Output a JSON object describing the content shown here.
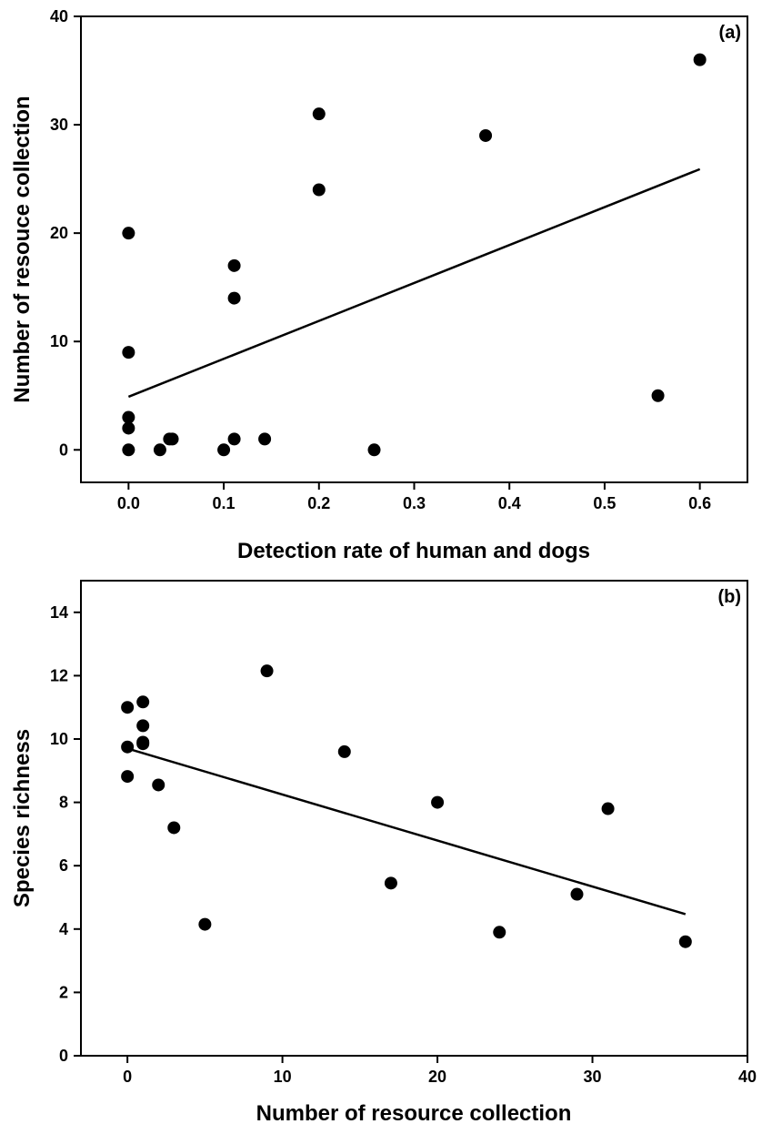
{
  "chart_data": [
    {
      "type": "scatter",
      "panel_label": "(a)",
      "xlabel": "Detection rate of human and dogs",
      "ylabel": "Number of resouce collection",
      "xlim": [
        -0.05,
        0.65
      ],
      "ylim": [
        -3,
        40
      ],
      "xticks": [
        0.0,
        0.1,
        0.2,
        0.3,
        0.4,
        0.5,
        0.6
      ],
      "xtick_labels": [
        "0.0",
        "0.1",
        "0.2",
        "0.3",
        "0.4",
        "0.5",
        "0.6"
      ],
      "yticks": [
        0,
        10,
        20,
        30,
        40
      ],
      "ytick_labels": [
        "0",
        "10",
        "20",
        "30",
        "40"
      ],
      "grid": false,
      "points": [
        {
          "x": 0.0,
          "y": 20
        },
        {
          "x": 0.0,
          "y": 9
        },
        {
          "x": 0.0,
          "y": 3
        },
        {
          "x": 0.0,
          "y": 2
        },
        {
          "x": 0.0,
          "y": 0
        },
        {
          "x": 0.033,
          "y": 0
        },
        {
          "x": 0.043,
          "y": 1
        },
        {
          "x": 0.046,
          "y": 1
        },
        {
          "x": 0.1,
          "y": 0
        },
        {
          "x": 0.111,
          "y": 1
        },
        {
          "x": 0.111,
          "y": 14
        },
        {
          "x": 0.111,
          "y": 17
        },
        {
          "x": 0.143,
          "y": 1
        },
        {
          "x": 0.2,
          "y": 31
        },
        {
          "x": 0.2,
          "y": 24
        },
        {
          "x": 0.258,
          "y": 0
        },
        {
          "x": 0.375,
          "y": 29
        },
        {
          "x": 0.556,
          "y": 5
        },
        {
          "x": 0.6,
          "y": 36
        }
      ],
      "fit_line": {
        "x": [
          0.0,
          0.6
        ],
        "y": [
          4.9,
          25.9
        ]
      }
    },
    {
      "type": "scatter",
      "panel_label": "(b)",
      "xlabel": "Number of resource collection",
      "ylabel": "Species richness",
      "xlim": [
        -3,
        40
      ],
      "ylim": [
        0,
        15
      ],
      "xticks": [
        0,
        10,
        20,
        30,
        40
      ],
      "xtick_labels": [
        "0",
        "10",
        "20",
        "30",
        "40"
      ],
      "yticks": [
        0,
        2,
        4,
        6,
        8,
        10,
        12,
        14
      ],
      "ytick_labels": [
        "0",
        "2",
        "4",
        "6",
        "8",
        "10",
        "12",
        "14"
      ],
      "grid": false,
      "points": [
        {
          "x": 0,
          "y": 11.0
        },
        {
          "x": 0,
          "y": 9.75
        },
        {
          "x": 0,
          "y": 8.82
        },
        {
          "x": 1,
          "y": 11.17
        },
        {
          "x": 1,
          "y": 10.42
        },
        {
          "x": 1,
          "y": 9.9
        },
        {
          "x": 1,
          "y": 9.85
        },
        {
          "x": 2,
          "y": 8.55
        },
        {
          "x": 3,
          "y": 7.2
        },
        {
          "x": 5,
          "y": 4.15
        },
        {
          "x": 9,
          "y": 12.15
        },
        {
          "x": 14,
          "y": 9.6
        },
        {
          "x": 17,
          "y": 5.45
        },
        {
          "x": 20,
          "y": 8.0
        },
        {
          "x": 24,
          "y": 3.9
        },
        {
          "x": 29,
          "y": 5.1
        },
        {
          "x": 31,
          "y": 7.8
        },
        {
          "x": 36,
          "y": 3.6
        }
      ],
      "fit_line": {
        "x": [
          0,
          36
        ],
        "y": [
          9.7,
          4.47
        ]
      }
    }
  ]
}
